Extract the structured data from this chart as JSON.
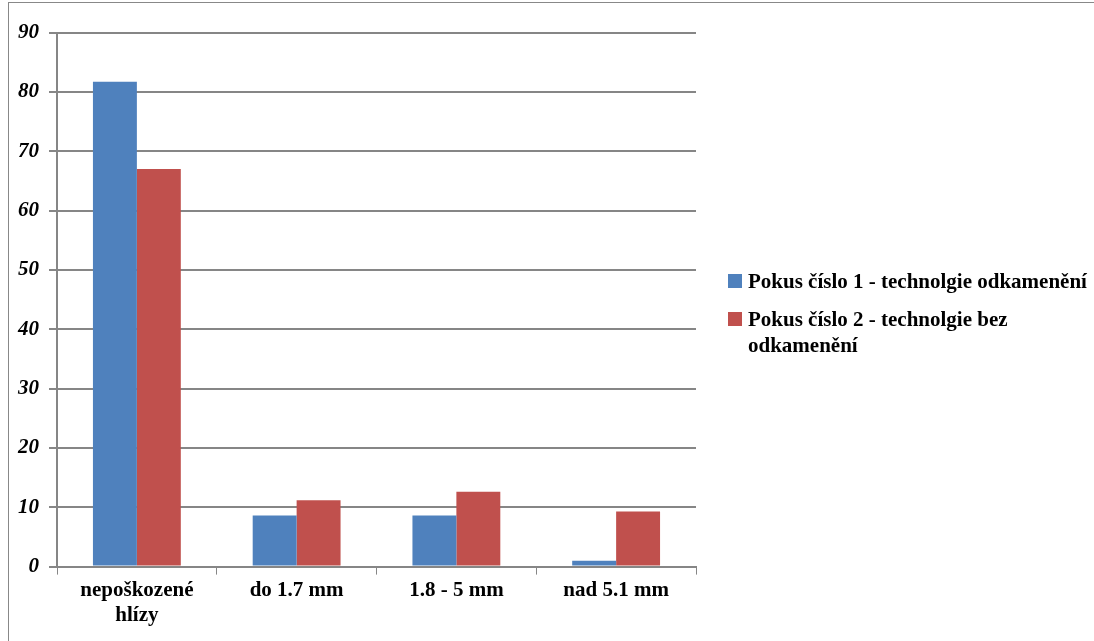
{
  "chart_data": {
    "type": "bar",
    "categories": [
      "nepoškozené hlízy",
      "do 1.7 mm",
      "1.8 - 5 mm",
      "nad 5.1 mm"
    ],
    "series": [
      {
        "name": "Pokus číslo 1 - technolgie odkamenění",
        "color": "#4f81bd",
        "values": [
          81.7,
          8.6,
          8.6,
          1.0
        ]
      },
      {
        "name": "Pokus číslo 2 - technolgie bez odkamenění",
        "color": "#c0504d",
        "values": [
          67.0,
          11.2,
          12.6,
          9.3
        ]
      }
    ],
    "ylim": [
      0,
      90
    ],
    "yticks": [
      0,
      10,
      20,
      30,
      40,
      50,
      60,
      70,
      80,
      90
    ],
    "grid": "y",
    "legend": "right"
  }
}
